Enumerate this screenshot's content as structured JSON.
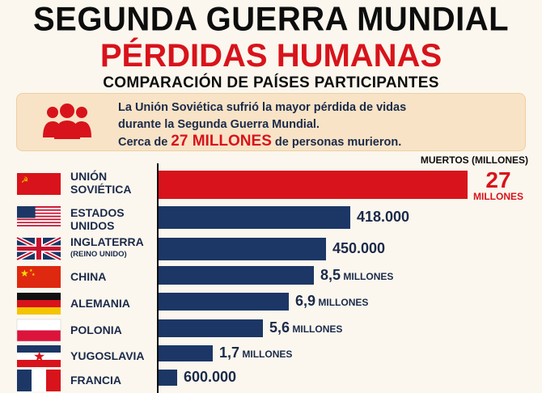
{
  "header": {
    "title": "SEGUNDA GUERRA MUNDIAL",
    "subtitle": "PÉRDIDAS HUMANAS",
    "tagline": "COMPARACIÓN DE PAÍSES PARTICIPANTES"
  },
  "note": {
    "line1": "La Unión Soviética sufrió la mayor pérdida de vidas",
    "line2": "durante la Segunda Guerra Mundial.",
    "line3_pre": "Cerca de",
    "line3_highlight": "27 MILLONES",
    "line3_post": "de personas murieron.",
    "icon": "people-group-icon"
  },
  "colors": {
    "highlight": "#d8131b",
    "bar": "#1c3766",
    "text": "#1b2a4a"
  },
  "chart_data": {
    "type": "bar",
    "orientation": "horizontal",
    "unit_label": "MUERTOS (MILLONES)",
    "categories": [
      "UNIÓN SOVIÉTICA",
      "ESTADOS UNIDOS",
      "INGLATERRA",
      "CHINA",
      "ALEMANIA",
      "POLONIA",
      "YUGOSLAVIA",
      "FRANCIA"
    ],
    "category_sublabels": [
      "",
      "",
      "(REINO UNIDO)",
      "",
      "",
      "",
      "",
      ""
    ],
    "values": [
      27,
      0.418,
      0.45,
      8.5,
      6.9,
      5.6,
      1.7,
      0.6
    ],
    "value_labels": [
      {
        "num": "27",
        "unit": "MILLONES"
      },
      {
        "num": "418.000",
        "unit": ""
      },
      {
        "num": "450.000",
        "unit": ""
      },
      {
        "num": "8,5",
        "unit": "MILLONES"
      },
      {
        "num": "6,9",
        "unit": "MILLONES"
      },
      {
        "num": "5,6",
        "unit": "MILLONES"
      },
      {
        "num": "1,7",
        "unit": "MILLONES"
      },
      {
        "num": "600.000",
        "unit": ""
      }
    ],
    "flags": [
      "ussr-flag",
      "usa-flag",
      "uk-flag",
      "china-flag",
      "germany-flag",
      "poland-flag",
      "yugoslavia-flag",
      "france-flag"
    ]
  }
}
